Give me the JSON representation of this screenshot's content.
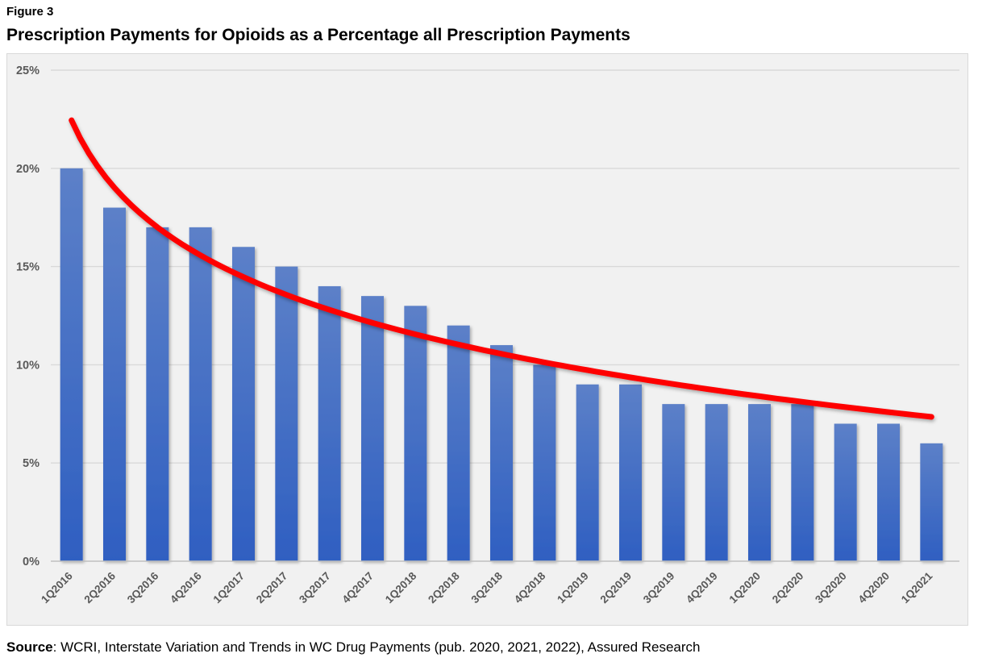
{
  "figure_label": "Figure 3",
  "title": "Prescription Payments for Opioids as a Percentage all Prescription Payments",
  "source": {
    "prefix": "Source",
    "rest": ": WCRI, Interstate Variation and Trends in WC Drug Payments (pub. 2020, 2021, 2022), Assured Research"
  },
  "chart_data": {
    "type": "bar",
    "title": "Prescription Payments for Opioids as a Percentage all Prescription Payments",
    "categories": [
      "1Q2016",
      "2Q2016",
      "3Q2016",
      "4Q2016",
      "1Q2017",
      "2Q2017",
      "3Q2017",
      "4Q2017",
      "1Q2018",
      "2Q2018",
      "3Q2018",
      "4Q2018",
      "1Q2019",
      "2Q2019",
      "3Q2019",
      "4Q2019",
      "1Q2020",
      "2Q2020",
      "3Q2020",
      "4Q2020",
      "1Q2021"
    ],
    "series": [
      {
        "name": "bars",
        "type": "bar",
        "values": [
          20,
          18,
          17,
          17,
          16,
          15,
          14,
          13.5,
          13,
          12,
          11,
          10,
          9,
          9,
          8,
          8,
          8,
          8,
          7,
          7,
          6
        ]
      },
      {
        "name": "trendline",
        "type": "line",
        "fit": "logarithmic",
        "formula": "y = 22.45 - 4.96*ln(x)",
        "a": 22.45,
        "b": -4.96,
        "x_start": 1,
        "x_end": 21
      }
    ],
    "xlabel": "",
    "ylabel": "",
    "ylim": [
      0,
      25
    ],
    "ytick_values": [
      0,
      5,
      10,
      15,
      20,
      25
    ],
    "ytick_labels": [
      "0%",
      "5%",
      "10%",
      "15%",
      "20%",
      "25%"
    ],
    "grid": true,
    "legend": false,
    "x_labels_rotated_degrees": 45,
    "colors": {
      "bar_top": "#5c80c8",
      "bar_bottom": "#2f5fc1",
      "trendline": "#fe0000",
      "plot_bg": "#f1f1f1",
      "gridline": "#d9d9d9",
      "axis_line": "#bfbfbf",
      "axis_text": "#595959",
      "title_text": "#000000"
    }
  }
}
